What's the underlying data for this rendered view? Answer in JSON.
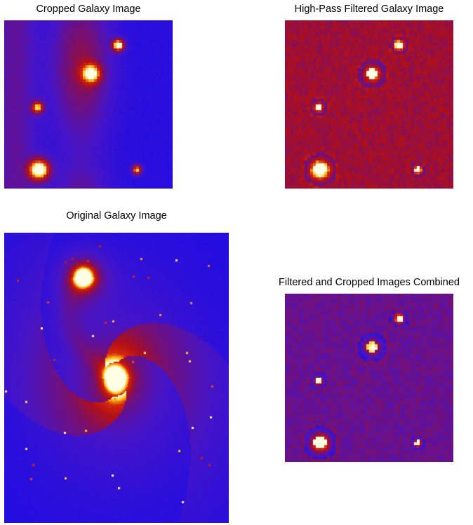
{
  "panels": {
    "cropped": {
      "title": "Cropped Galaxy Image"
    },
    "highpass": {
      "title": "High-Pass Filtered Galaxy Image"
    },
    "original": {
      "title": "Original Galaxy Image"
    },
    "combined": {
      "title": "Filtered and Cropped Images Combined"
    }
  },
  "colors": {
    "low": "#1a10e6",
    "mid": "#b0101a",
    "high": "#ffe030",
    "background": "#ffffff"
  }
}
